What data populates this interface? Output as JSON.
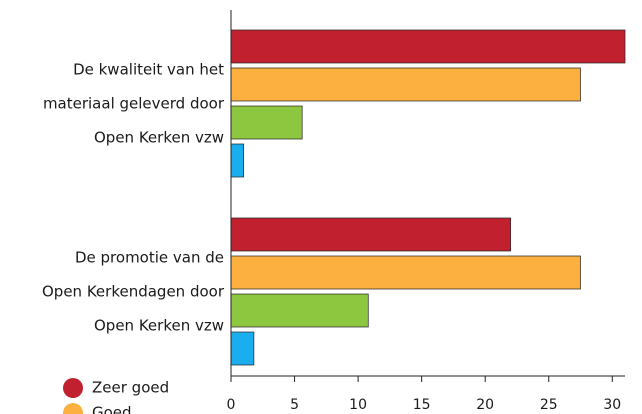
{
  "chart_data": {
    "type": "bar",
    "orientation": "horizontal",
    "categories": [
      [
        "De kwaliteit van het",
        "materiaal geleverd door",
        "Open Kerken vzw"
      ],
      [
        "De promotie van de",
        "Open Kerkendagen door",
        "Open Kerken vzw"
      ]
    ],
    "series": [
      {
        "name": "Zeer goed",
        "color": "#c1202f",
        "values": [
          31,
          22
        ]
      },
      {
        "name": "Goed",
        "color": "#fbb040",
        "values": [
          27.5,
          27.5
        ]
      },
      {
        "color": "#8dc63f",
        "values": [
          5.6,
          10.8
        ]
      },
      {
        "color": "#1aaeee",
        "values": [
          1,
          1.8
        ]
      }
    ],
    "xlim": [
      0,
      31
    ],
    "xticks": [
      0,
      5,
      10,
      15,
      20,
      25,
      30
    ]
  }
}
